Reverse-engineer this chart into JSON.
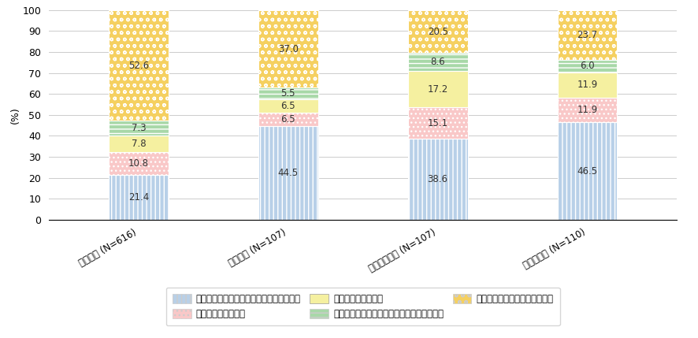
{
  "categories": [
    "日本企業 (N=616)",
    "米国企業 (N=107)",
    "イギリス企業 (N=107)",
    "ドイツ企業 (N=110)"
  ],
  "series": [
    {
      "label": "国内から国外へ、国外から国内への双方向",
      "values": [
        21.4,
        44.5,
        38.6,
        46.5
      ],
      "color": "#b8d0e8",
      "hatch": "|||"
    },
    {
      "label": "国内から国外へのみ",
      "values": [
        10.8,
        6.5,
        15.1,
        11.9
      ],
      "color": "#f9c8c8",
      "hatch": "..."
    },
    {
      "label": "国外から国内へのみ",
      "values": [
        7.8,
        6.5,
        17.2,
        11.9
      ],
      "color": "#f5f0a0",
      "hatch": ""
    },
    {
      "label": "過去には行っていたが、現在は行っていない",
      "values": [
        7.3,
        5.5,
        8.6,
        6.0
      ],
      "color": "#a8d8a8",
      "hatch": "---"
    },
    {
      "label": "過去・現在ともに行っていない",
      "values": [
        52.6,
        37.0,
        20.5,
        23.7
      ],
      "color": "#f5d060",
      "hatch": "oo"
    }
  ],
  "ylabel": "(%)",
  "ylim": [
    0,
    100
  ],
  "yticks": [
    0,
    10,
    20,
    30,
    40,
    50,
    60,
    70,
    80,
    90,
    100
  ],
  "bar_width": 0.4,
  "background_color": "#ffffff",
  "grid_color": "#cccccc",
  "label_fontsize": 8.5,
  "tick_fontsize": 9,
  "legend_fontsize": 8.5
}
